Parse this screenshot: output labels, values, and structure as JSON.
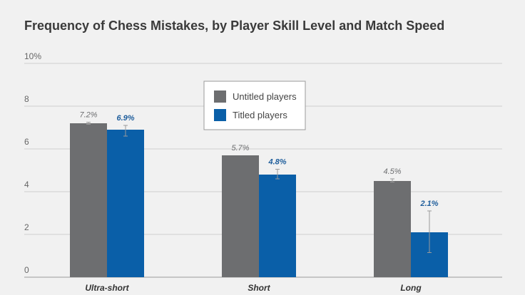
{
  "chart_data": {
    "type": "bar",
    "title": "Frequency of Chess Mistakes, by Player Skill Level and Match Speed",
    "xlabel": "",
    "ylabel": "",
    "categories": [
      "Ultra-short",
      "Short",
      "Long"
    ],
    "ylim": [
      0,
      10
    ],
    "yticks": [
      0,
      2,
      4,
      6,
      8,
      10
    ],
    "ytick_labels": [
      "0",
      "2",
      "4",
      "6",
      "8",
      "10%"
    ],
    "grid": true,
    "legend_position": "top-center",
    "series": [
      {
        "name": "Untitled players",
        "values": [
          7.2,
          5.7,
          4.5
        ],
        "labels": [
          "7.2%",
          "5.7%",
          "4.5%"
        ],
        "error": [
          [
            7.15,
            7.25
          ],
          [
            5.7,
            5.7
          ],
          [
            4.45,
            4.6
          ]
        ],
        "color": "#6d6e70",
        "label_color": "#6d6e70"
      },
      {
        "name": "Titled players",
        "values": [
          6.9,
          4.8,
          2.1
        ],
        "labels": [
          "6.9%",
          "4.8%",
          "2.1%"
        ],
        "error": [
          [
            6.6,
            7.1
          ],
          [
            4.6,
            5.05
          ],
          [
            1.15,
            3.1
          ]
        ],
        "color": "#0a5fa8",
        "label_color": "#1f5e9c"
      }
    ]
  }
}
